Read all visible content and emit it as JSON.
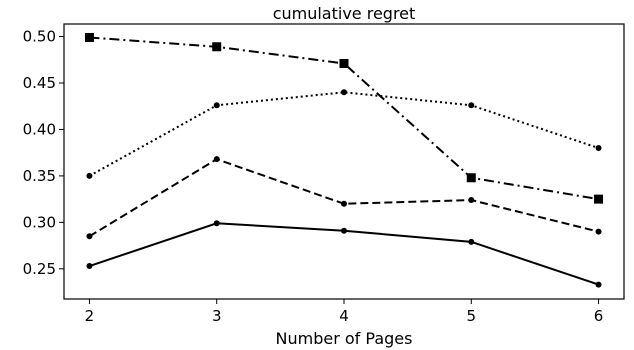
{
  "chart_data": {
    "type": "line",
    "title": "cumulative regret",
    "xlabel": "Number of Pages",
    "ylabel": "",
    "x": [
      2,
      3,
      4,
      5,
      6
    ],
    "xlim": [
      1.8,
      6.2
    ],
    "ylim": [
      0.2175,
      0.5135
    ],
    "xticks": [
      2,
      3,
      4,
      5,
      6
    ],
    "yticks": [
      0.25,
      0.3,
      0.35,
      0.4,
      0.45,
      0.5
    ],
    "ytick_labels": [
      "0.25",
      "0.30",
      "0.35",
      "0.40",
      "0.45",
      "0.50"
    ],
    "grid": false,
    "series": [
      {
        "style": "dashdot",
        "marker": "square",
        "color": "#000000",
        "values": [
          0.499,
          0.489,
          0.471,
          0.348,
          0.325
        ]
      },
      {
        "style": "dotted",
        "marker": "circle",
        "color": "#000000",
        "values": [
          0.35,
          0.426,
          0.44,
          0.426,
          0.38
        ]
      },
      {
        "style": "dashed",
        "marker": "circle",
        "color": "#000000",
        "values": [
          0.285,
          0.368,
          0.32,
          0.324,
          0.29
        ]
      },
      {
        "style": "solid",
        "marker": "circle",
        "color": "#000000",
        "values": [
          0.253,
          0.299,
          0.291,
          0.279,
          0.233
        ]
      }
    ]
  }
}
